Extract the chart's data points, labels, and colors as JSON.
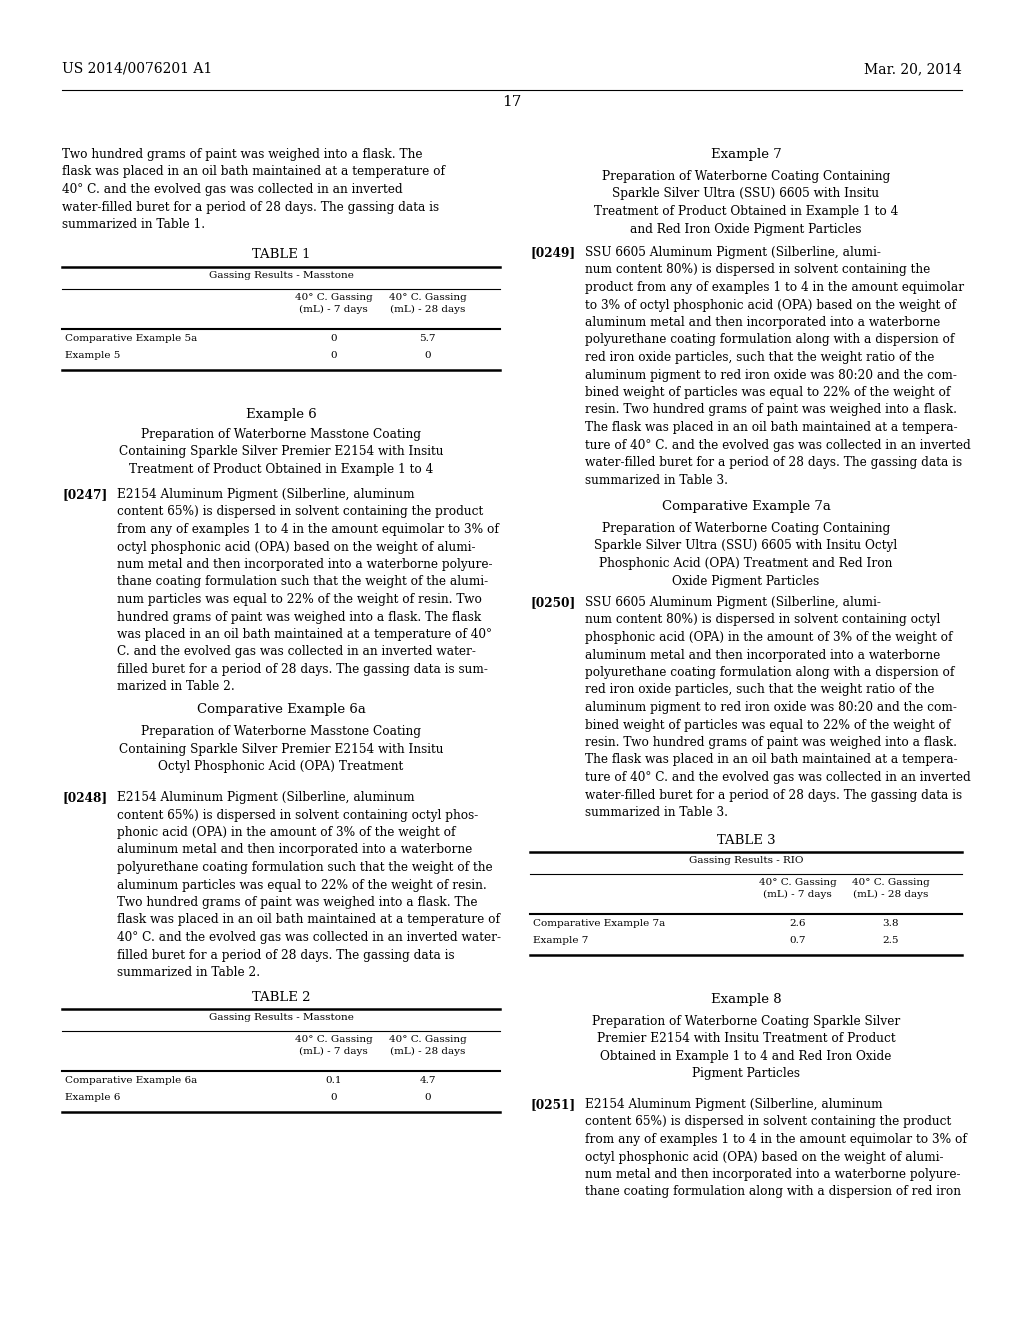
{
  "background_color": "#ffffff",
  "page_number": "17",
  "header_left": "US 2014/0076201 A1",
  "header_right": "Mar. 20, 2014",
  "table1": {
    "title": "TABLE 1",
    "subtitle": "Gassing Results - Masstone",
    "col2": "40° C. Gassing\n(mL) - 7 days",
    "col3": "40° C. Gassing\n(mL) - 28 days",
    "rows": [
      [
        "Comparative Example 5a",
        "0",
        "5.7"
      ],
      [
        "Example 5",
        "0",
        "0"
      ]
    ]
  },
  "table2": {
    "title": "TABLE 2",
    "subtitle": "Gassing Results - Masstone",
    "col2": "40° C. Gassing\n(mL) - 7 days",
    "col3": "40° C. Gassing\n(mL) - 28 days",
    "rows": [
      [
        "Comparative Example 6a",
        "0.1",
        "4.7"
      ],
      [
        "Example 6",
        "0",
        "0"
      ]
    ]
  },
  "table3": {
    "title": "TABLE 3",
    "subtitle": "Gassing Results - RIO",
    "col2": "40° C. Gassing\n(mL) - 7 days",
    "col3": "40° C. Gassing\n(mL) - 28 days",
    "rows": [
      [
        "Comparative Example 7a",
        "2.6",
        "3.8"
      ],
      [
        "Example 7",
        "0.7",
        "2.5"
      ]
    ]
  }
}
